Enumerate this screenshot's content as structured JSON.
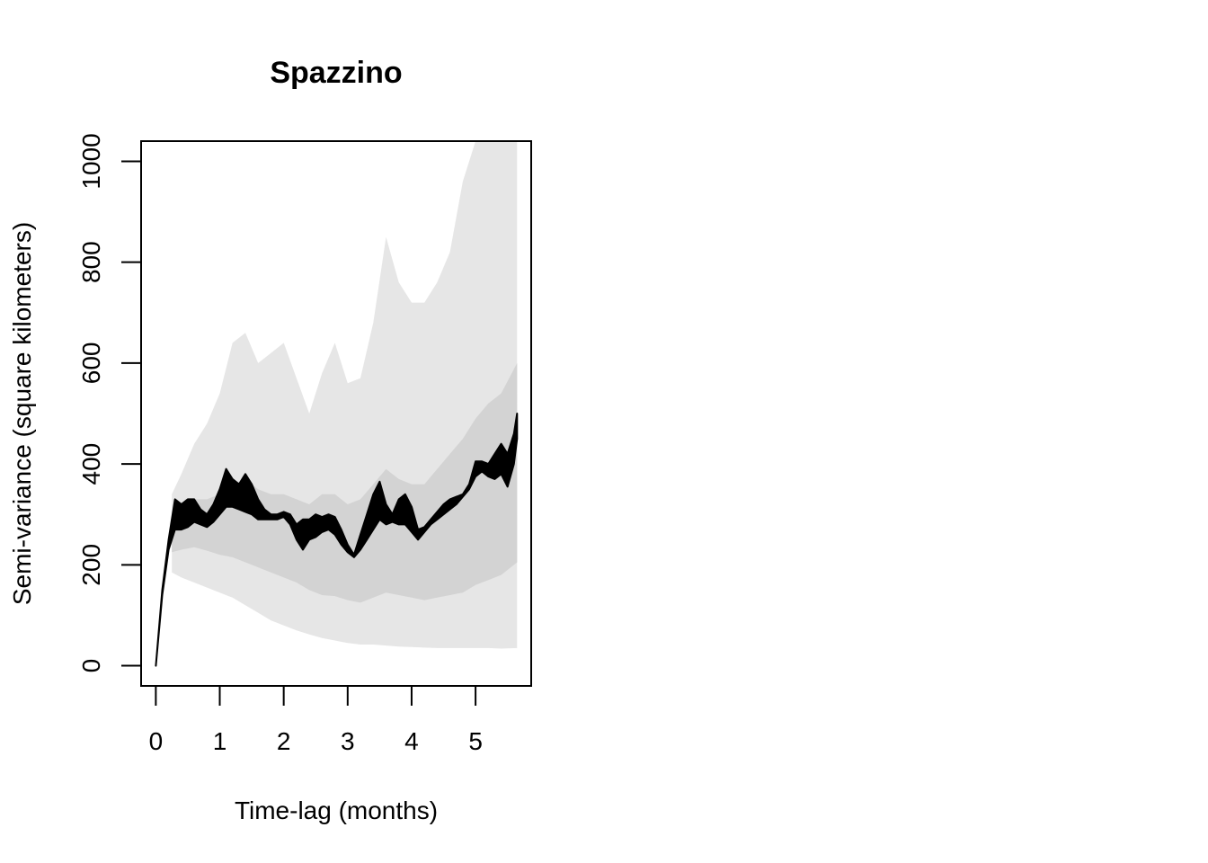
{
  "chart_data": {
    "type": "line",
    "title": "Spazzino",
    "xlabel": "Time-lag (months)",
    "ylabel": "Semi-variance (square kilometers)",
    "xlim": [
      -0.23,
      5.87
    ],
    "ylim": [
      -40,
      1040
    ],
    "x_ticks": [
      "0",
      "1",
      "2",
      "3",
      "4",
      "5"
    ],
    "y_ticks": [
      "0",
      "200",
      "400",
      "600",
      "800",
      "1000"
    ],
    "grid": false,
    "legend": "none",
    "colors": {
      "line": "#000000",
      "inner_band": "#d3d3d3",
      "outer_band": "#e6e6e6",
      "frame": "#000000"
    },
    "series": [
      {
        "role": "empirical",
        "x": [
          0,
          0.1,
          0.2,
          0.3,
          0.4,
          0.5,
          0.6,
          0.7,
          0.8,
          0.9,
          1.0,
          1.1,
          1.2,
          1.3,
          1.4,
          1.5,
          1.6,
          1.7,
          1.8,
          1.9,
          2.0,
          2.1,
          2.2,
          2.3,
          2.4,
          2.5,
          2.6,
          2.7,
          2.8,
          2.9,
          3.0,
          3.1,
          3.2,
          3.3,
          3.4,
          3.5,
          3.6,
          3.7,
          3.8,
          3.9,
          4.0,
          4.1,
          4.2,
          4.3,
          4.4,
          4.5,
          4.6,
          4.7,
          4.8,
          4.9,
          5.0,
          5.1,
          5.2,
          5.3,
          5.4,
          5.5,
          5.6,
          5.65
        ],
        "low": [
          0,
          140,
          230,
          270,
          270,
          275,
          285,
          280,
          275,
          285,
          300,
          315,
          315,
          310,
          305,
          300,
          290,
          290,
          290,
          290,
          295,
          280,
          250,
          230,
          250,
          255,
          265,
          270,
          260,
          240,
          225,
          215,
          230,
          250,
          270,
          290,
          280,
          285,
          280,
          280,
          265,
          250,
          265,
          280,
          290,
          300,
          310,
          320,
          335,
          350,
          375,
          385,
          375,
          370,
          380,
          355,
          400,
          450
        ],
        "high": [
          0,
          150,
          250,
          330,
          320,
          330,
          330,
          310,
          300,
          320,
          350,
          390,
          370,
          360,
          380,
          360,
          330,
          310,
          300,
          300,
          305,
          300,
          280,
          290,
          290,
          300,
          295,
          300,
          295,
          270,
          240,
          220,
          260,
          300,
          340,
          365,
          320,
          300,
          330,
          340,
          315,
          270,
          275,
          290,
          305,
          320,
          330,
          335,
          340,
          360,
          405,
          405,
          400,
          420,
          440,
          420,
          460,
          500
        ]
      }
    ],
    "bands": [
      {
        "role": "outer",
        "x": [
          0.25,
          0.4,
          0.6,
          0.8,
          1.0,
          1.2,
          1.4,
          1.6,
          1.8,
          2.0,
          2.2,
          2.4,
          2.6,
          2.8,
          3.0,
          3.2,
          3.4,
          3.6,
          3.8,
          4.0,
          4.2,
          4.4,
          4.6,
          4.8,
          5.0,
          5.2,
          5.4,
          5.65
        ],
        "low": [
          185,
          175,
          165,
          155,
          145,
          135,
          120,
          105,
          90,
          80,
          70,
          62,
          55,
          50,
          45,
          42,
          42,
          40,
          38,
          37,
          36,
          35,
          35,
          35,
          35,
          35,
          34,
          35
        ],
        "high": [
          340,
          380,
          440,
          480,
          540,
          640,
          660,
          600,
          620,
          640,
          570,
          500,
          580,
          640,
          560,
          570,
          680,
          850,
          760,
          720,
          720,
          760,
          820,
          960,
          1040,
          1040,
          1040,
          1040
        ]
      },
      {
        "role": "inner",
        "x": [
          0.25,
          0.4,
          0.6,
          0.8,
          1.0,
          1.2,
          1.4,
          1.6,
          1.8,
          2.0,
          2.2,
          2.4,
          2.6,
          2.8,
          3.0,
          3.2,
          3.4,
          3.6,
          3.8,
          4.0,
          4.2,
          4.4,
          4.6,
          4.8,
          5.0,
          5.2,
          5.4,
          5.65
        ],
        "low": [
          225,
          230,
          235,
          228,
          220,
          215,
          205,
          195,
          185,
          175,
          165,
          150,
          140,
          138,
          130,
          125,
          135,
          145,
          140,
          135,
          130,
          135,
          140,
          145,
          160,
          170,
          180,
          205
        ],
        "high": [
          300,
          320,
          330,
          330,
          340,
          360,
          370,
          350,
          340,
          340,
          330,
          320,
          340,
          340,
          320,
          330,
          360,
          390,
          370,
          360,
          360,
          390,
          420,
          450,
          490,
          520,
          540,
          600
        ]
      }
    ]
  }
}
